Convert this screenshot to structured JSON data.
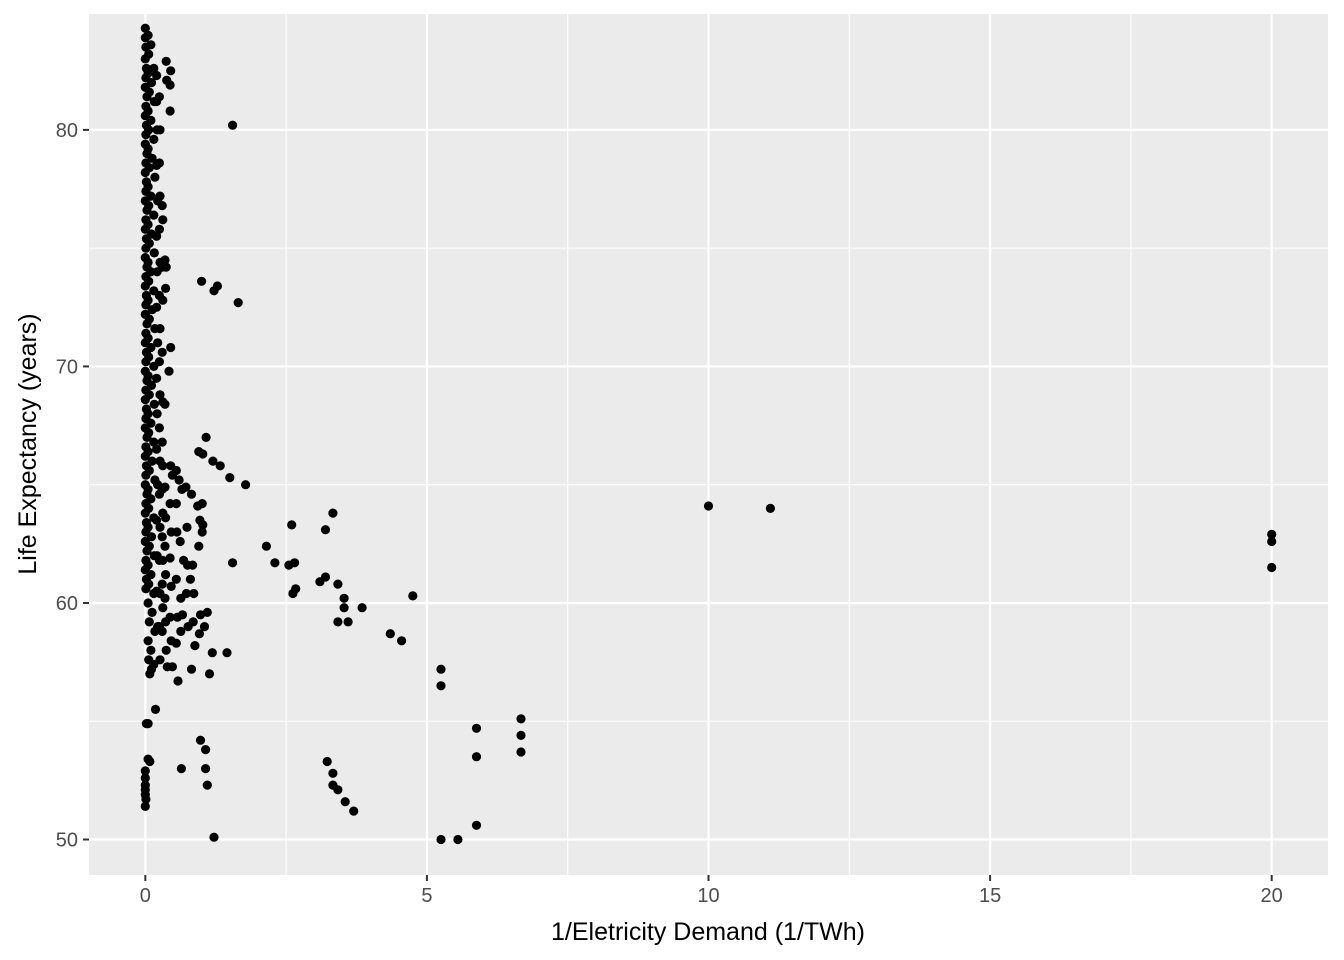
{
  "chart_data": {
    "type": "scatter",
    "title": "",
    "xlabel": "1/Eletricity Demand (1/TWh)",
    "ylabel": "Life Expectancy (years)",
    "xlim": [
      -1.0,
      21.0
    ],
    "ylim": [
      48.5,
      84.9
    ],
    "x_ticks": [
      0,
      5,
      10,
      15,
      20
    ],
    "x_tick_labels": [
      "0",
      "5",
      "10",
      "15",
      "20"
    ],
    "y_ticks": [
      50,
      60,
      70,
      80
    ],
    "y_tick_labels": [
      "50",
      "60",
      "70",
      "80"
    ],
    "grid": true,
    "legend": "none",
    "colors": {
      "panel": "#ebebeb",
      "grid": "#ffffff",
      "point": "#000000"
    },
    "series": [
      {
        "points": [
          [
            0.0,
            84.3
          ],
          [
            0.0,
            83.9
          ],
          [
            0.01,
            83.5
          ],
          [
            0.0,
            83.0
          ],
          [
            0.02,
            82.6
          ],
          [
            0.01,
            82.2
          ],
          [
            0.0,
            81.8
          ],
          [
            0.03,
            81.4
          ],
          [
            0.01,
            81.0
          ],
          [
            0.0,
            80.6
          ],
          [
            0.02,
            80.2
          ],
          [
            0.01,
            79.8
          ],
          [
            0.0,
            79.4
          ],
          [
            0.03,
            79.0
          ],
          [
            0.01,
            78.6
          ],
          [
            0.0,
            78.2
          ],
          [
            0.02,
            77.8
          ],
          [
            0.01,
            77.4
          ],
          [
            0.0,
            77.0
          ],
          [
            0.03,
            76.6
          ],
          [
            0.01,
            76.2
          ],
          [
            0.0,
            75.8
          ],
          [
            0.02,
            75.4
          ],
          [
            0.01,
            75.0
          ],
          [
            0.0,
            74.6
          ],
          [
            0.03,
            74.2
          ],
          [
            0.01,
            73.8
          ],
          [
            0.0,
            73.4
          ],
          [
            0.02,
            73.0
          ],
          [
            0.01,
            72.6
          ],
          [
            0.0,
            72.2
          ],
          [
            0.03,
            71.8
          ],
          [
            0.01,
            71.4
          ],
          [
            0.0,
            71.0
          ],
          [
            0.02,
            70.6
          ],
          [
            0.01,
            70.2
          ],
          [
            0.0,
            69.8
          ],
          [
            0.03,
            69.4
          ],
          [
            0.01,
            69.0
          ],
          [
            0.0,
            68.6
          ],
          [
            0.02,
            68.2
          ],
          [
            0.01,
            67.8
          ],
          [
            0.0,
            67.4
          ],
          [
            0.03,
            67.0
          ],
          [
            0.01,
            66.6
          ],
          [
            0.0,
            66.2
          ],
          [
            0.02,
            65.8
          ],
          [
            0.01,
            65.4
          ],
          [
            0.0,
            65.0
          ],
          [
            0.03,
            64.6
          ],
          [
            0.01,
            64.2
          ],
          [
            0.0,
            63.8
          ],
          [
            0.02,
            63.4
          ],
          [
            0.01,
            63.0
          ],
          [
            0.0,
            62.6
          ],
          [
            0.03,
            62.2
          ],
          [
            0.01,
            61.8
          ],
          [
            0.0,
            61.4
          ],
          [
            0.02,
            61.0
          ],
          [
            0.01,
            60.6
          ],
          [
            0.05,
            84.0
          ],
          [
            0.06,
            83.2
          ],
          [
            0.05,
            82.4
          ],
          [
            0.07,
            81.6
          ],
          [
            0.05,
            80.8
          ],
          [
            0.06,
            80.0
          ],
          [
            0.05,
            79.2
          ],
          [
            0.07,
            78.4
          ],
          [
            0.05,
            77.6
          ],
          [
            0.06,
            76.8
          ],
          [
            0.05,
            76.0
          ],
          [
            0.07,
            75.2
          ],
          [
            0.05,
            74.4
          ],
          [
            0.06,
            73.6
          ],
          [
            0.05,
            72.8
          ],
          [
            0.07,
            72.0
          ],
          [
            0.05,
            71.2
          ],
          [
            0.06,
            70.4
          ],
          [
            0.05,
            69.6
          ],
          [
            0.07,
            68.8
          ],
          [
            0.05,
            68.0
          ],
          [
            0.06,
            67.2
          ],
          [
            0.05,
            66.4
          ],
          [
            0.07,
            65.6
          ],
          [
            0.05,
            64.8
          ],
          [
            0.06,
            64.0
          ],
          [
            0.05,
            63.2
          ],
          [
            0.07,
            62.4
          ],
          [
            0.05,
            61.6
          ],
          [
            0.06,
            60.8
          ],
          [
            0.05,
            60.0
          ],
          [
            0.07,
            59.2
          ],
          [
            0.05,
            58.4
          ],
          [
            0.06,
            57.6
          ],
          [
            0.08,
            57.0
          ],
          [
            0.1,
            83.6
          ],
          [
            0.11,
            82.0
          ],
          [
            0.1,
            80.4
          ],
          [
            0.12,
            78.8
          ],
          [
            0.1,
            77.2
          ],
          [
            0.11,
            75.6
          ],
          [
            0.1,
            74.0
          ],
          [
            0.12,
            72.4
          ],
          [
            0.1,
            70.8
          ],
          [
            0.11,
            69.2
          ],
          [
            0.1,
            67.6
          ],
          [
            0.12,
            66.0
          ],
          [
            0.1,
            64.4
          ],
          [
            0.11,
            62.8
          ],
          [
            0.1,
            61.2
          ],
          [
            0.12,
            59.6
          ],
          [
            0.1,
            58.0
          ],
          [
            0.11,
            57.2
          ],
          [
            0.15,
            82.6
          ],
          [
            0.16,
            81.2
          ],
          [
            0.15,
            79.6
          ],
          [
            0.17,
            78.0
          ],
          [
            0.15,
            76.4
          ],
          [
            0.16,
            74.8
          ],
          [
            0.15,
            73.2
          ],
          [
            0.17,
            71.6
          ],
          [
            0.15,
            70.0
          ],
          [
            0.16,
            68.4
          ],
          [
            0.15,
            66.8
          ],
          [
            0.17,
            65.2
          ],
          [
            0.15,
            63.6
          ],
          [
            0.16,
            62.0
          ],
          [
            0.15,
            60.4
          ],
          [
            0.17,
            58.8
          ],
          [
            0.15,
            57.4
          ],
          [
            0.2,
            82.3
          ],
          [
            0.2,
            81.2
          ],
          [
            0.21,
            80.0
          ],
          [
            0.2,
            78.5
          ],
          [
            0.22,
            77.0
          ],
          [
            0.2,
            75.5
          ],
          [
            0.21,
            74.0
          ],
          [
            0.2,
            72.5
          ],
          [
            0.22,
            71.0
          ],
          [
            0.2,
            69.5
          ],
          [
            0.21,
            68.0
          ],
          [
            0.2,
            66.5
          ],
          [
            0.22,
            65.0
          ],
          [
            0.2,
            63.5
          ],
          [
            0.21,
            62.0
          ],
          [
            0.2,
            60.5
          ],
          [
            0.22,
            59.0
          ],
          [
            0.25,
            81.4
          ],
          [
            0.26,
            80.0
          ],
          [
            0.25,
            78.6
          ],
          [
            0.26,
            77.2
          ],
          [
            0.25,
            75.8
          ],
          [
            0.26,
            74.4
          ],
          [
            0.25,
            73.0
          ],
          [
            0.26,
            71.6
          ],
          [
            0.25,
            70.2
          ],
          [
            0.26,
            68.8
          ],
          [
            0.25,
            67.4
          ],
          [
            0.26,
            66.0
          ],
          [
            0.25,
            64.6
          ],
          [
            0.26,
            63.2
          ],
          [
            0.25,
            61.8
          ],
          [
            0.26,
            60.4
          ],
          [
            0.25,
            59.0
          ],
          [
            0.26,
            57.6
          ],
          [
            0.3,
            76.8
          ],
          [
            0.31,
            76.2
          ],
          [
            0.3,
            74.2
          ],
          [
            0.31,
            72.8
          ],
          [
            0.3,
            70.6
          ],
          [
            0.31,
            68.5
          ],
          [
            0.3,
            66.8
          ],
          [
            0.31,
            65.8
          ],
          [
            0.3,
            64.8
          ],
          [
            0.31,
            63.8
          ],
          [
            0.3,
            62.8
          ],
          [
            0.31,
            61.8
          ],
          [
            0.3,
            60.8
          ],
          [
            0.31,
            59.8
          ],
          [
            0.3,
            58.8
          ],
          [
            0.37,
            82.9
          ],
          [
            0.38,
            82.1
          ],
          [
            0.35,
            74.5
          ],
          [
            0.37,
            74.2
          ],
          [
            0.36,
            73.3
          ],
          [
            0.35,
            68.4
          ],
          [
            0.35,
            64.9
          ],
          [
            0.36,
            63.6
          ],
          [
            0.35,
            62.4
          ],
          [
            0.36,
            61.2
          ],
          [
            0.35,
            60.2
          ],
          [
            0.36,
            59.2
          ],
          [
            0.37,
            58.0
          ],
          [
            0.39,
            57.3
          ],
          [
            0.45,
            82.5
          ],
          [
            0.44,
            81.9
          ],
          [
            0.44,
            80.8
          ],
          [
            0.45,
            70.8
          ],
          [
            0.42,
            69.8
          ],
          [
            0.45,
            65.8
          ],
          [
            0.48,
            65.4
          ],
          [
            0.44,
            64.2
          ],
          [
            0.46,
            63.0
          ],
          [
            0.44,
            61.9
          ],
          [
            0.46,
            60.7
          ],
          [
            0.44,
            59.4
          ],
          [
            0.46,
            58.4
          ],
          [
            0.48,
            57.3
          ],
          [
            0.55,
            65.6
          ],
          [
            0.55,
            64.2
          ],
          [
            0.56,
            63.0
          ],
          [
            0.55,
            61.0
          ],
          [
            0.57,
            59.4
          ],
          [
            0.55,
            58.3
          ],
          [
            0.58,
            56.7
          ],
          [
            0.64,
            53.0
          ],
          [
            0.6,
            65.2
          ],
          [
            0.65,
            64.8
          ],
          [
            0.62,
            62.6
          ],
          [
            0.68,
            61.8
          ],
          [
            0.63,
            60.2
          ],
          [
            0.66,
            59.5
          ],
          [
            0.63,
            58.8
          ],
          [
            0.72,
            64.9
          ],
          [
            0.74,
            63.2
          ],
          [
            0.75,
            61.6
          ],
          [
            0.73,
            60.4
          ],
          [
            0.76,
            59.0
          ],
          [
            0.82,
            57.2
          ],
          [
            0.82,
            64.6
          ],
          [
            0.8,
            61.0
          ],
          [
            0.84,
            61.6
          ],
          [
            0.86,
            60.4
          ],
          [
            0.85,
            59.2
          ],
          [
            0.88,
            58.2
          ],
          [
            0.95,
            66.4
          ],
          [
            0.93,
            64.1
          ],
          [
            0.97,
            63.5
          ],
          [
            0.95,
            62.4
          ],
          [
            0.98,
            59.5
          ],
          [
            0.96,
            58.7
          ],
          [
            0.98,
            54.2
          ],
          [
            1.0,
            73.6
          ],
          [
            1.02,
            66.3
          ],
          [
            1.01,
            64.2
          ],
          [
            1.02,
            63.3
          ],
          [
            1.01,
            63.0
          ],
          [
            1.08,
            67.0
          ],
          [
            1.05,
            59.0
          ],
          [
            1.07,
            53.8
          ],
          [
            1.07,
            53.0
          ],
          [
            1.1,
            52.3
          ],
          [
            1.1,
            59.6
          ],
          [
            1.2,
            66.0
          ],
          [
            1.14,
            57.0
          ],
          [
            1.19,
            57.9
          ],
          [
            1.22,
            50.1
          ],
          [
            1.22,
            73.2
          ],
          [
            1.28,
            73.4
          ],
          [
            1.33,
            65.8
          ],
          [
            1.45,
            57.9
          ],
          [
            1.5,
            65.3
          ],
          [
            1.55,
            61.7
          ],
          [
            1.55,
            80.2
          ],
          [
            1.65,
            72.7
          ],
          [
            1.78,
            65.0
          ],
          [
            2.15,
            62.4
          ],
          [
            2.3,
            61.7
          ],
          [
            2.55,
            61.6
          ],
          [
            2.6,
            63.3
          ],
          [
            2.65,
            61.7
          ],
          [
            2.62,
            60.4
          ],
          [
            2.67,
            60.6
          ],
          [
            3.1,
            60.9
          ],
          [
            3.2,
            61.1
          ],
          [
            3.2,
            63.1
          ],
          [
            3.33,
            63.8
          ],
          [
            3.42,
            60.8
          ],
          [
            3.42,
            59.2
          ],
          [
            3.53,
            60.2
          ],
          [
            3.53,
            59.8
          ],
          [
            3.6,
            59.2
          ],
          [
            3.85,
            59.8
          ],
          [
            3.23,
            53.3
          ],
          [
            3.33,
            52.8
          ],
          [
            3.33,
            52.3
          ],
          [
            3.42,
            52.1
          ],
          [
            3.55,
            51.6
          ],
          [
            3.7,
            51.2
          ],
          [
            4.35,
            58.7
          ],
          [
            4.55,
            58.4
          ],
          [
            4.75,
            60.3
          ],
          [
            5.25,
            57.2
          ],
          [
            5.25,
            56.5
          ],
          [
            5.25,
            50.0
          ],
          [
            5.55,
            50.0
          ],
          [
            5.88,
            54.7
          ],
          [
            5.88,
            53.5
          ],
          [
            5.88,
            50.6
          ],
          [
            6.67,
            55.1
          ],
          [
            6.67,
            54.4
          ],
          [
            6.67,
            53.7
          ],
          [
            10.0,
            64.1
          ],
          [
            11.1,
            64.0
          ],
          [
            20.0,
            62.9
          ],
          [
            20.0,
            62.6
          ],
          [
            20.0,
            61.5
          ],
          [
            0.0,
            52.9
          ],
          [
            0.0,
            52.6
          ],
          [
            0.0,
            52.3
          ],
          [
            0.0,
            51.9
          ],
          [
            0.01,
            51.7
          ],
          [
            0.0,
            51.4
          ],
          [
            0.0,
            52.1
          ],
          [
            0.02,
            54.9
          ],
          [
            0.05,
            54.9
          ],
          [
            0.05,
            53.4
          ],
          [
            0.08,
            53.3
          ],
          [
            0.18,
            55.5
          ]
        ]
      }
    ]
  }
}
